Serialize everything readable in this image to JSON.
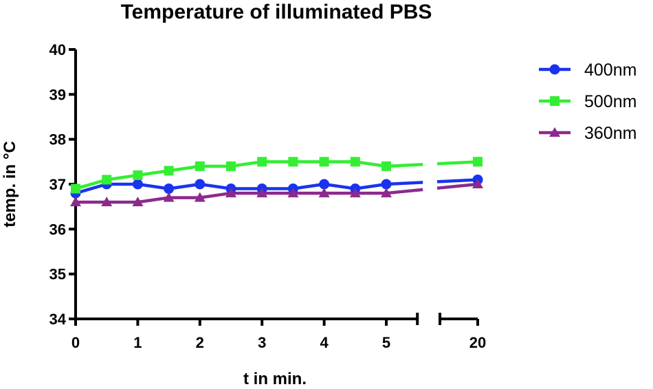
{
  "chart_data": {
    "type": "line",
    "title": "Temperature of illuminated PBS",
    "xlabel": "t in min.",
    "ylabel": "temp. in °C",
    "ylim": [
      34,
      40
    ],
    "yticks": [
      "34",
      "35",
      "36",
      "37",
      "38",
      "39",
      "40"
    ],
    "xticks": [
      "0",
      "1",
      "2",
      "3",
      "4",
      "5",
      "20"
    ],
    "x_axis_break": {
      "segment1": [
        0,
        5.5
      ],
      "segment2": [
        19.5,
        20
      ]
    },
    "legend_position": "top-right",
    "grid": false,
    "x": [
      0,
      0.5,
      1,
      1.5,
      2,
      2.5,
      3,
      3.5,
      4,
      4.5,
      5,
      20
    ],
    "series": [
      {
        "name": "400nm",
        "color": "#1a33ee",
        "marker": "circle",
        "values": [
          36.8,
          37.0,
          37.0,
          36.9,
          37.0,
          36.9,
          36.9,
          36.9,
          37.0,
          36.9,
          37.0,
          37.1
        ]
      },
      {
        "name": "500nm",
        "color": "#33ee33",
        "marker": "square",
        "values": [
          36.9,
          37.1,
          37.2,
          37.3,
          37.4,
          37.4,
          37.5,
          37.5,
          37.5,
          37.5,
          37.4,
          37.5
        ]
      },
      {
        "name": "360nm",
        "color": "#8c2a8c",
        "marker": "triangle",
        "values": [
          36.6,
          36.6,
          36.6,
          36.7,
          36.7,
          36.8,
          36.8,
          36.8,
          36.8,
          36.8,
          36.8,
          37.0
        ]
      }
    ]
  }
}
